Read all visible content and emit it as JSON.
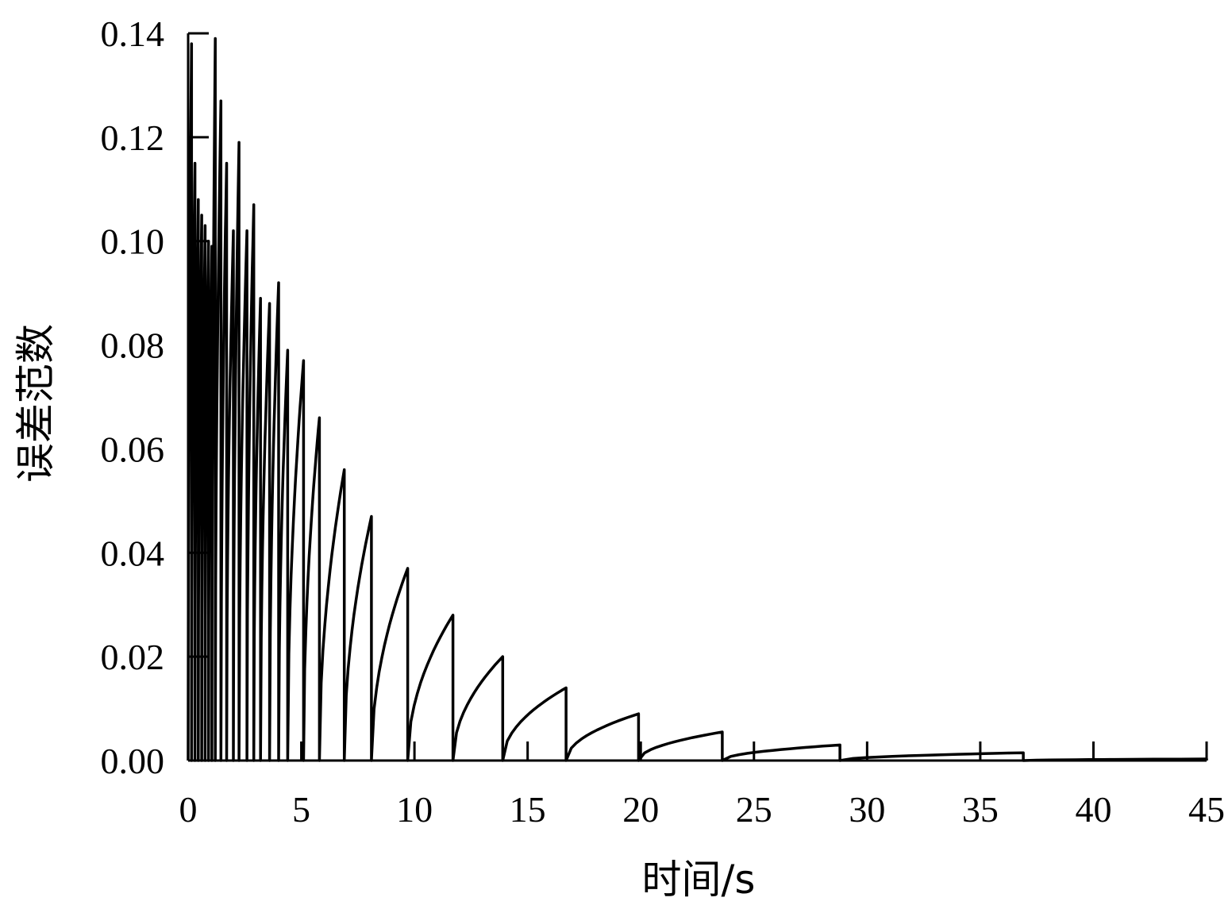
{
  "chart_data": {
    "type": "line",
    "title": "",
    "xlabel": "时间/s",
    "ylabel": "误差范数",
    "xlim": [
      0,
      45
    ],
    "ylim": [
      0,
      0.14
    ],
    "xticks": [
      "0",
      "5",
      "10",
      "15",
      "20",
      "25",
      "30",
      "35",
      "40",
      "45"
    ],
    "yticks": [
      "0.00",
      "0.02",
      "0.04",
      "0.06",
      "0.08",
      "0.10",
      "0.12",
      "0.14"
    ],
    "grid": false,
    "legend": "none",
    "line_color": "#000000",
    "series": [
      {
        "events": [
          {
            "t": 0.15,
            "peak": 0.138
          },
          {
            "t": 0.3,
            "peak": 0.115
          },
          {
            "t": 0.45,
            "peak": 0.108
          },
          {
            "t": 0.6,
            "peak": 0.105
          },
          {
            "t": 0.75,
            "peak": 0.103
          },
          {
            "t": 0.9,
            "peak": 0.1
          },
          {
            "t": 1.05,
            "peak": 0.099
          },
          {
            "t": 1.2,
            "peak": 0.139
          },
          {
            "t": 1.45,
            "peak": 0.127
          },
          {
            "t": 1.7,
            "peak": 0.115
          },
          {
            "t": 2.0,
            "peak": 0.102
          },
          {
            "t": 2.25,
            "peak": 0.119
          },
          {
            "t": 2.6,
            "peak": 0.102
          },
          {
            "t": 2.9,
            "peak": 0.107
          },
          {
            "t": 3.2,
            "peak": 0.089
          },
          {
            "t": 3.6,
            "peak": 0.088
          },
          {
            "t": 4.0,
            "peak": 0.092
          },
          {
            "t": 4.4,
            "peak": 0.079
          },
          {
            "t": 5.1,
            "peak": 0.077
          },
          {
            "t": 5.8,
            "peak": 0.066
          },
          {
            "t": 6.9,
            "peak": 0.056
          },
          {
            "t": 8.1,
            "peak": 0.047
          },
          {
            "t": 9.7,
            "peak": 0.037
          },
          {
            "t": 11.7,
            "peak": 0.028
          },
          {
            "t": 13.9,
            "peak": 0.02
          },
          {
            "t": 16.7,
            "peak": 0.014
          },
          {
            "t": 19.9,
            "peak": 0.009
          },
          {
            "t": 23.6,
            "peak": 0.0055
          },
          {
            "t": 28.8,
            "peak": 0.003
          },
          {
            "t": 36.9,
            "peak": 0.0015
          },
          {
            "t": 45.0,
            "peak": 0.0003
          }
        ]
      }
    ]
  }
}
